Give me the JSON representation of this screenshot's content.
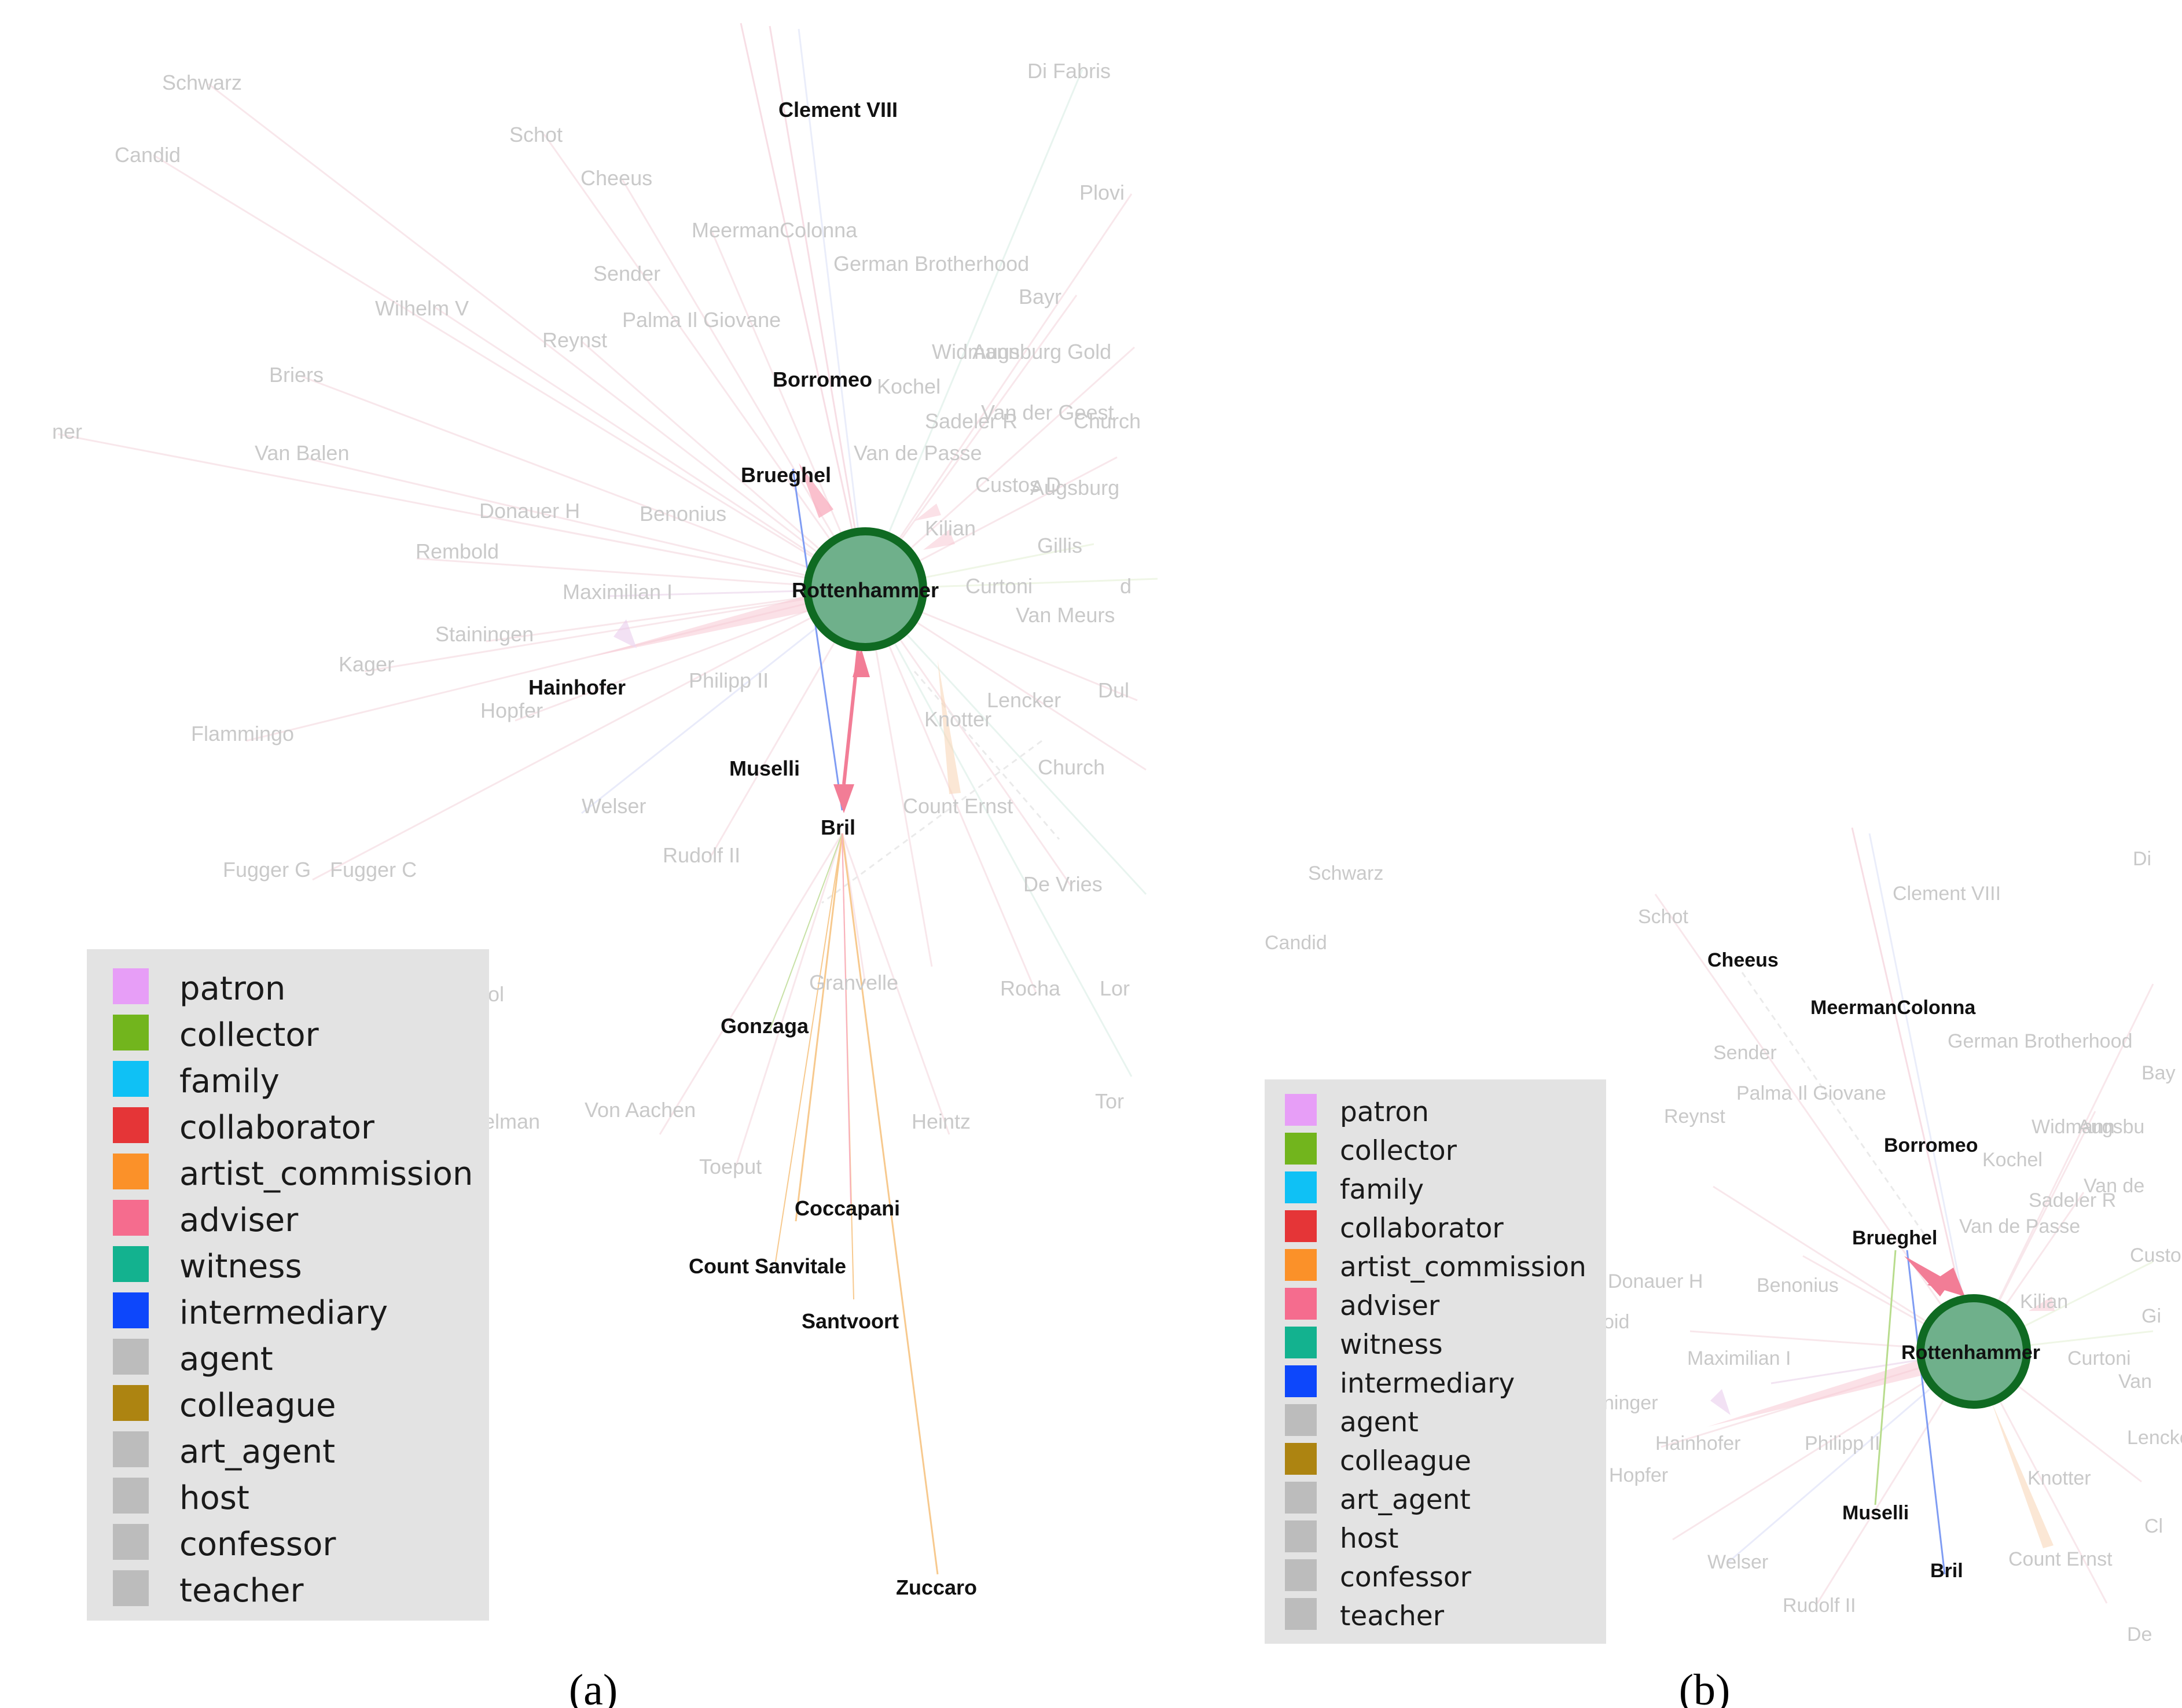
{
  "panels": [
    {
      "caption": "(a)",
      "center_node": "Rottenhammer",
      "highlighted_nodes": [
        "Clement VIII",
        "Borromeo",
        "Brueghel",
        "Hainhofer",
        "Muselli",
        "Bril",
        "Gonzaga",
        "Coccapani",
        "Count Sanvitale",
        "Santvoort",
        "Zuccaro"
      ],
      "faded_nodes": [
        "Schwarz",
        "Candid",
        "Schot",
        "Cheeus",
        "Di Fabris",
        "Plovi",
        "MeermanColonna",
        "German Brotherhood",
        "Sender",
        "Bayr",
        "Palma Il Giovane",
        "Wilhelm V",
        "Reynst",
        "Widmann",
        "Augsburg Gold",
        "Kochel",
        "Briers",
        "Van der Geest",
        "Sadeler R",
        "Church",
        "Van de Passe",
        "Van Balen",
        "Custos D",
        "Augsburg",
        "Donauer H",
        "Benonius",
        "Kilian",
        "Gillis",
        "Rembold",
        "Maximilian I",
        "Curtoni",
        "Van Meurs",
        "Stainingen",
        "Kager",
        "Philipp II",
        "Lencker",
        "Hopfer",
        "Knotter",
        "Flammingo",
        "Church",
        "Welser",
        "Count Ernst",
        "Fugger G",
        "Fugger C",
        "Rudolf II",
        "De Vries",
        "Granvelle",
        "Rocha",
        "Von Aachen",
        "Heintz",
        "Toeput",
        "ner",
        "Dul",
        "Lor",
        "Tor",
        "d",
        "iol",
        "elman"
      ]
    },
    {
      "caption": "(b)",
      "center_node": "Rottenhammer",
      "highlighted_nodes": [
        "Cheeus",
        "MeermanColonna",
        "Borromeo",
        "Brueghel",
        "Muselli",
        "Bril"
      ],
      "faded_nodes": [
        "Schwarz",
        "Candid",
        "Schot",
        "Clement VIII",
        "Di",
        "Sender",
        "German Brotherhood",
        "Bay",
        "Palma Il Giovane",
        "Reynst",
        "Widmann",
        "Augsbu",
        "Kochel",
        "Van de",
        "Sadeler R",
        "Van de Passe",
        "Donauer H",
        "Benonius",
        "Custos",
        "Kilian",
        "Gi",
        "Maximilian I",
        "Curtoni",
        "Van",
        "Hainhofer",
        "Philipp II",
        "Lencke",
        "Hopfer",
        "Knotter",
        "Welser",
        "Count Ernst",
        "Rudolf II",
        "Cl",
        "De",
        "oid",
        "ninger"
      ]
    }
  ],
  "legend": {
    "items": [
      {
        "label": "patron",
        "color": "#e79ef7"
      },
      {
        "label": "collector",
        "color": "#72b51d"
      },
      {
        "label": "family",
        "color": "#0fc1f5"
      },
      {
        "label": "collaborator",
        "color": "#e53537"
      },
      {
        "label": "artist_commission",
        "color": "#fb9129"
      },
      {
        "label": "adviser",
        "color": "#f56c8e"
      },
      {
        "label": "witness",
        "color": "#13b28f"
      },
      {
        "label": "intermediary",
        "color": "#0d47fb"
      },
      {
        "label": "agent",
        "color": "#bcbcbc"
      },
      {
        "label": "colleague",
        "color": "#ad8411"
      },
      {
        "label": "art_agent",
        "color": "#bcbcbc"
      },
      {
        "label": "host",
        "color": "#bcbcbc"
      },
      {
        "label": "confessor",
        "color": "#bcbcbc"
      },
      {
        "label": "teacher",
        "color": "#bcbcbc"
      }
    ]
  },
  "colors": {
    "center_fill": "#6fb08b",
    "center_stroke": "#0f6a22",
    "edge_adviser": "#f27d96",
    "edge_intermediary": "#6a85f0",
    "edge_artist_commission": "#f5b77a",
    "edge_collector": "#9bcf6a"
  }
}
